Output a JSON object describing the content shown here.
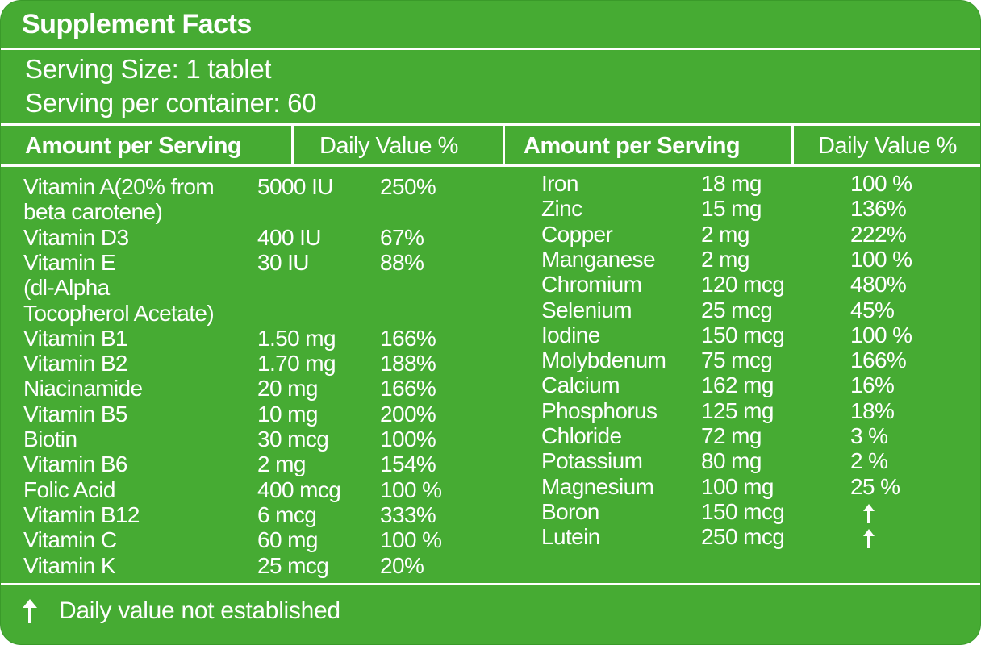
{
  "title": "Supplement Facts",
  "serving_size": "Serving Size: 1 tablet",
  "servings_per_container": "Serving per container: 60",
  "headers": {
    "amount": "Amount per Serving",
    "daily_value": "Daily Value %"
  },
  "left_rows": [
    {
      "name": "Vitamin A(20% from",
      "amount": "5000 IU",
      "dv": "250%"
    },
    {
      "name": "beta carotene)",
      "amount": "",
      "dv": ""
    },
    {
      "name": "Vitamin D3",
      "amount": "400 IU",
      "dv": "67%"
    },
    {
      "name": "Vitamin E",
      "amount": "30 IU",
      "dv": "88%"
    },
    {
      "name": "(dl-Alpha",
      "amount": "",
      "dv": ""
    },
    {
      "name": " Tocopherol Acetate)",
      "amount": "",
      "dv": ""
    },
    {
      "name": "Vitamin B1",
      "amount": "1.50 mg",
      "dv": "166%"
    },
    {
      "name": "Vitamin B2",
      "amount": "1.70 mg",
      "dv": "188%"
    },
    {
      "name": "Niacinamide",
      "amount": "20 mg",
      "dv": "166%"
    },
    {
      "name": "Vitamin B5",
      "amount": "10 mg",
      "dv": "200%"
    },
    {
      "name": "Biotin",
      "amount": "30 mcg",
      "dv": "100%"
    },
    {
      "name": "Vitamin B6",
      "amount": "2 mg",
      "dv": "154%"
    },
    {
      "name": "Folic Acid",
      "amount": "400 mcg",
      "dv": "100 %"
    },
    {
      "name": "Vitamin B12",
      "amount": "6 mcg",
      "dv": "333%"
    },
    {
      "name": "Vitamin C",
      "amount": "60 mg",
      "dv": "100 %"
    },
    {
      "name": "Vitamin K",
      "amount": "25 mcg",
      "dv": "20%"
    }
  ],
  "right_rows": [
    {
      "name": "Iron",
      "amount": "18 mg",
      "dv": "100 %"
    },
    {
      "name": "Zinc",
      "amount": "15 mg",
      "dv": "136%"
    },
    {
      "name": "Copper",
      "amount": "2 mg",
      "dv": "222%"
    },
    {
      "name": "Manganese",
      "amount": "2 mg",
      "dv": "100 %"
    },
    {
      "name": "Chromium",
      "amount": "120 mcg",
      "dv": "480%"
    },
    {
      "name": "Selenium",
      "amount": "25 mcg",
      "dv": "45%"
    },
    {
      "name": "Iodine",
      "amount": "150 mcg",
      "dv": "100 %"
    },
    {
      "name": "Molybdenum",
      "amount": "75 mcg",
      "dv": "166%"
    },
    {
      "name": "Calcium",
      "amount": "162 mg",
      "dv": "16%"
    },
    {
      "name": "Phosphorus",
      "amount": "125 mg",
      "dv": "18%"
    },
    {
      "name": "Chloride",
      "amount": "72 mg",
      "dv": "3 %"
    },
    {
      "name": "Potassium",
      "amount": "80 mg",
      "dv": "2 %"
    },
    {
      "name": "Magnesium",
      "amount": "100 mg",
      "dv": "25 %"
    },
    {
      "name": "Boron",
      "amount": "150 mcg",
      "dv": "",
      "dv_icon": "up-arrow-icon"
    },
    {
      "name": "Lutein",
      "amount": "250 mcg",
      "dv": "",
      "dv_icon": "up-arrow-icon"
    }
  ],
  "footer": {
    "icon": "up-arrow-icon",
    "text": "Daily value not established"
  },
  "colors": {
    "background": "#46ab33",
    "text": "#ffffff"
  }
}
